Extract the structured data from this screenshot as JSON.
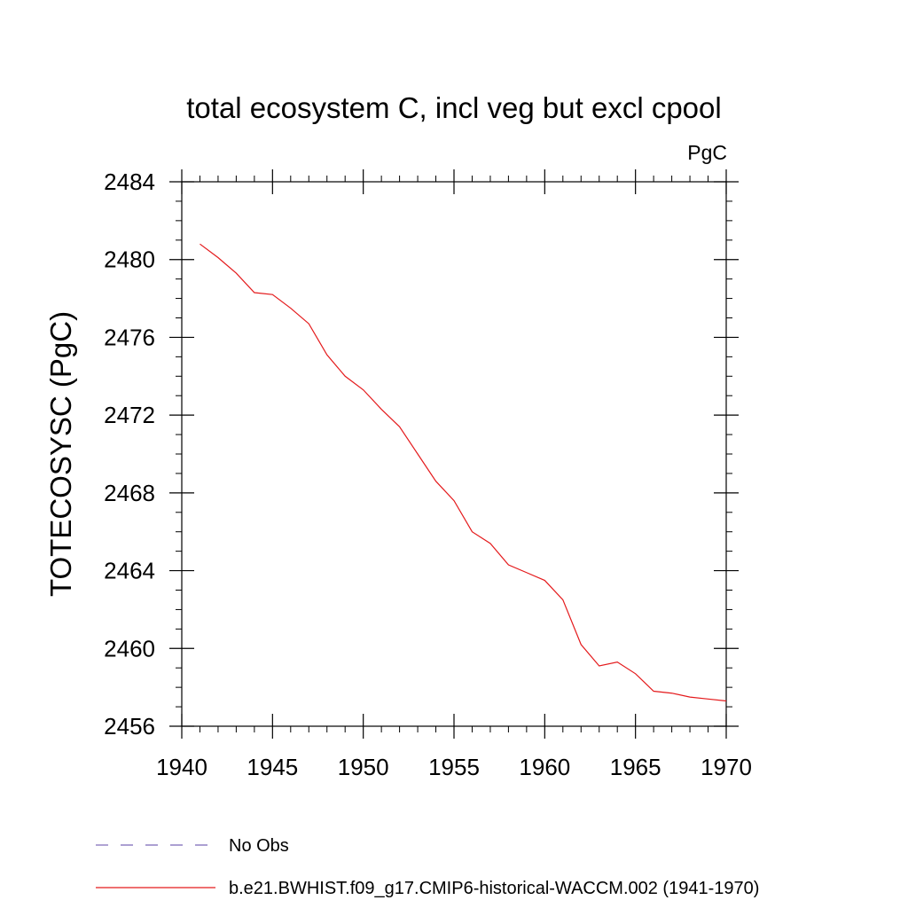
{
  "chart_data": {
    "type": "line",
    "title": "total ecosystem C, incl veg but excl cpool",
    "units_label": "PgC",
    "xlabel": "",
    "ylabel": "TOTECOSYSC  (PgC)",
    "xlim": [
      1940,
      1970
    ],
    "ylim": [
      2456,
      2484
    ],
    "x_major_ticks": [
      1940,
      1945,
      1950,
      1955,
      1960,
      1965,
      1970
    ],
    "x_minor_step": 1,
    "y_major_ticks": [
      2456,
      2460,
      2464,
      2468,
      2472,
      2476,
      2480,
      2484
    ],
    "y_minor_step": 1,
    "grid": false,
    "legend_position": "bottom-left",
    "series": [
      {
        "name": "No Obs",
        "color": "#7b68b8",
        "dash": "dashed",
        "x": [],
        "values": []
      },
      {
        "name": "b.e21.BWHIST.f09_g17.CMIP6-historical-WACCM.002 (1941-1970)",
        "color": "#e41a1c",
        "dash": "solid",
        "x": [
          1941,
          1942,
          1943,
          1944,
          1945,
          1946,
          1947,
          1948,
          1949,
          1950,
          1951,
          1952,
          1953,
          1954,
          1955,
          1956,
          1957,
          1958,
          1959,
          1960,
          1961,
          1962,
          1963,
          1964,
          1965,
          1966,
          1967,
          1968,
          1969,
          1970
        ],
        "values": [
          2480.8,
          2480.1,
          2479.3,
          2478.3,
          2478.2,
          2477.5,
          2476.7,
          2475.1,
          2474.0,
          2473.3,
          2472.3,
          2471.4,
          2470.0,
          2468.6,
          2467.6,
          2466.0,
          2465.4,
          2464.3,
          2463.9,
          2463.5,
          2462.5,
          2460.2,
          2459.1,
          2459.3,
          2458.7,
          2457.8,
          2457.7,
          2457.5,
          2457.4,
          2457.3
        ]
      }
    ]
  }
}
